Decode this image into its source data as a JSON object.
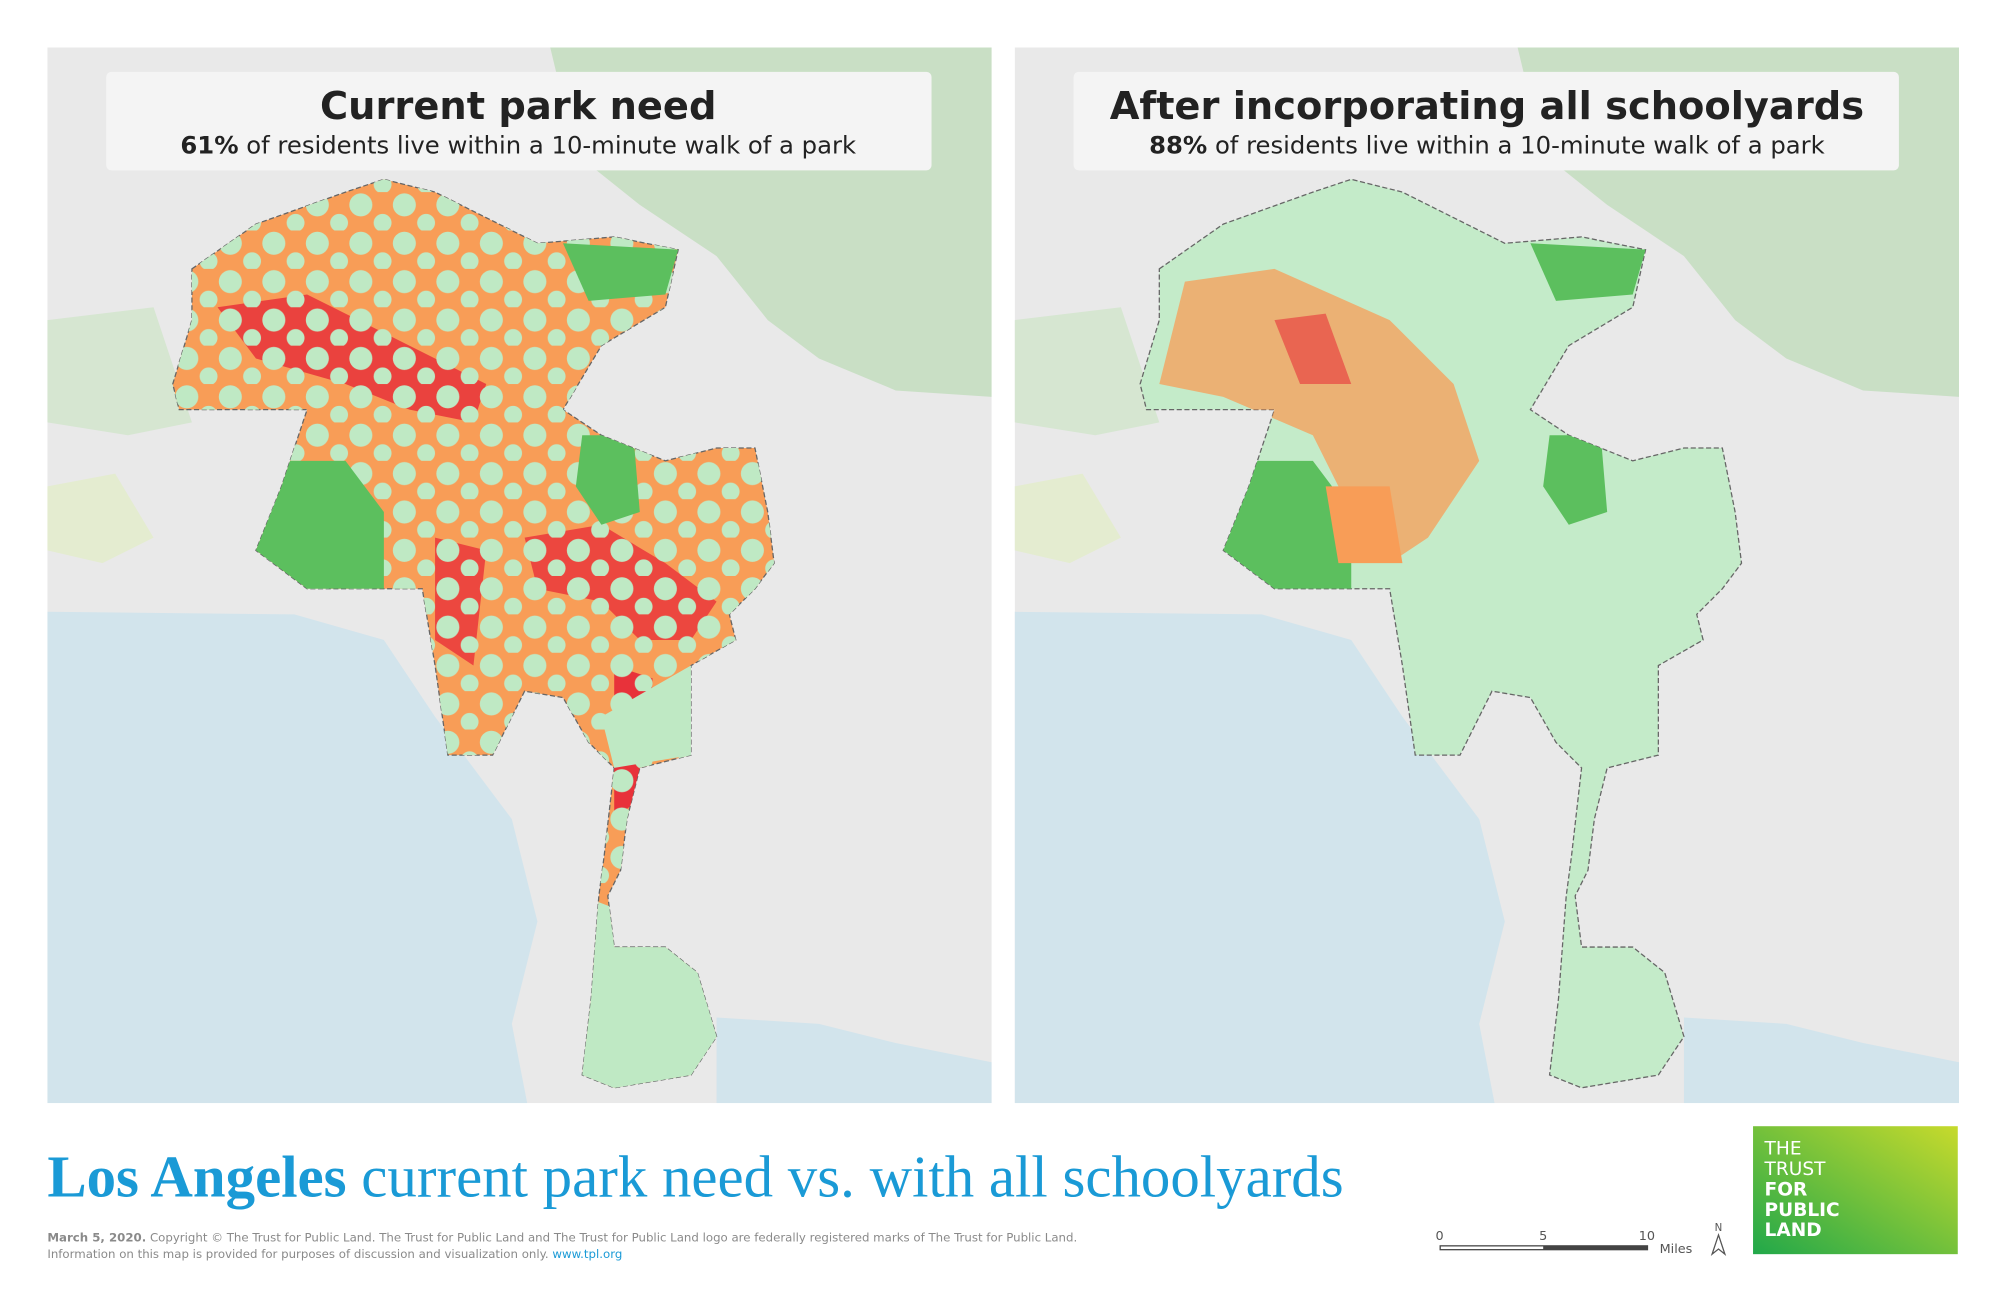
{
  "panels": [
    {
      "title": "Current park need",
      "subtitle_bold": "61%",
      "subtitle": " of residents live within a 10-minute walk of a park"
    },
    {
      "title": "After incorporating all schoolyards",
      "subtitle_bold": "88%",
      "subtitle": " of residents live within a 10-minute walk of a park"
    }
  ],
  "title": {
    "bold": "Los Angeles",
    "text": " current park need vs. with all schoolyards"
  },
  "footer": {
    "date": "March 5, 2020.",
    "copyright": " Copyright © The Trust for Public Land. The Trust for Public Land and The Trust for Public Land logo are federally registered marks of The Trust for Public Land.",
    "info": "Information on this map is provided for purposes of discussion and visualization only. ",
    "url": "www.tpl.org"
  },
  "scale_bar": {
    "ticks": [
      "0",
      "5",
      "10"
    ],
    "unit": "Miles",
    "north": "N"
  },
  "logo": [
    "THE",
    "TRUST",
    "FOR",
    "PUBLIC",
    "LAND"
  ]
}
